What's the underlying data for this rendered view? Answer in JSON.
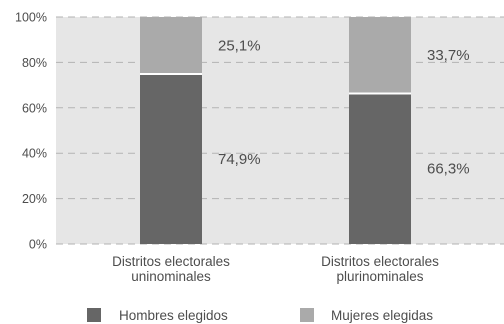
{
  "chart_data": {
    "type": "bar",
    "stacked": true,
    "normalized": true,
    "categories": [
      [
        "Distritos electorales",
        "uninominales"
      ],
      [
        "Distritos electorales",
        "plurinominales"
      ]
    ],
    "series": [
      {
        "name": "Hombres elegidos",
        "values": [
          74.9,
          66.3
        ],
        "labels": [
          "74,9%",
          "66,3%"
        ],
        "color": "#666666"
      },
      {
        "name": "Mujeres elegidas",
        "values": [
          25.1,
          33.7
        ],
        "labels": [
          "25,1%",
          "33,7%"
        ],
        "color": "#aaaaaa"
      }
    ],
    "yticks": [
      0,
      20,
      40,
      60,
      80,
      100
    ],
    "ytick_labels": [
      "0%",
      "20%",
      "40%",
      "60%",
      "80%",
      "100%"
    ],
    "ylim": [
      0,
      100
    ],
    "plot_background": "#e6e6e6",
    "grid": true,
    "grid_style": "dashed",
    "legend_position": "bottom"
  }
}
